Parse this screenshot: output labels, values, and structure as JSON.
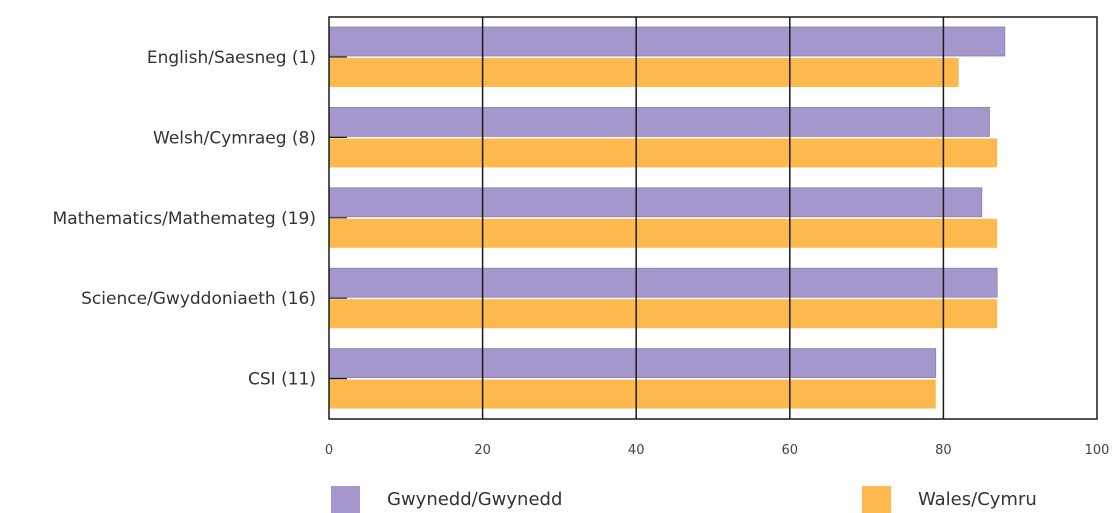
{
  "chart_data": {
    "type": "bar",
    "orientation": "horizontal",
    "categories": [
      "English/Saesneg (1)",
      "Welsh/Cymraeg (8)",
      "Mathematics/Mathemateg (19)",
      "Science/Gwyddoniaeth (16)",
      "CSI (11)"
    ],
    "series": [
      {
        "name": "Gwynedd/Gwynedd",
        "color": "#a596cb",
        "values": [
          88,
          86,
          85,
          87,
          79
        ]
      },
      {
        "name": "Wales/Cymru",
        "color": "#fdb94e",
        "values": [
          82,
          87,
          87,
          87,
          79
        ]
      }
    ],
    "xlim": [
      0,
      100
    ],
    "xticks": [
      0,
      20,
      40,
      60,
      80,
      100
    ],
    "tick_labels": [
      "0",
      "20",
      "40",
      "60",
      "80",
      "100"
    ],
    "grid": true,
    "legend_position": "bottom"
  },
  "legend": {
    "items": [
      {
        "label": "Gwynedd/Gwynedd",
        "color": "#a596cb"
      },
      {
        "label": "Wales/Cymru",
        "color": "#fdb94e"
      }
    ]
  }
}
